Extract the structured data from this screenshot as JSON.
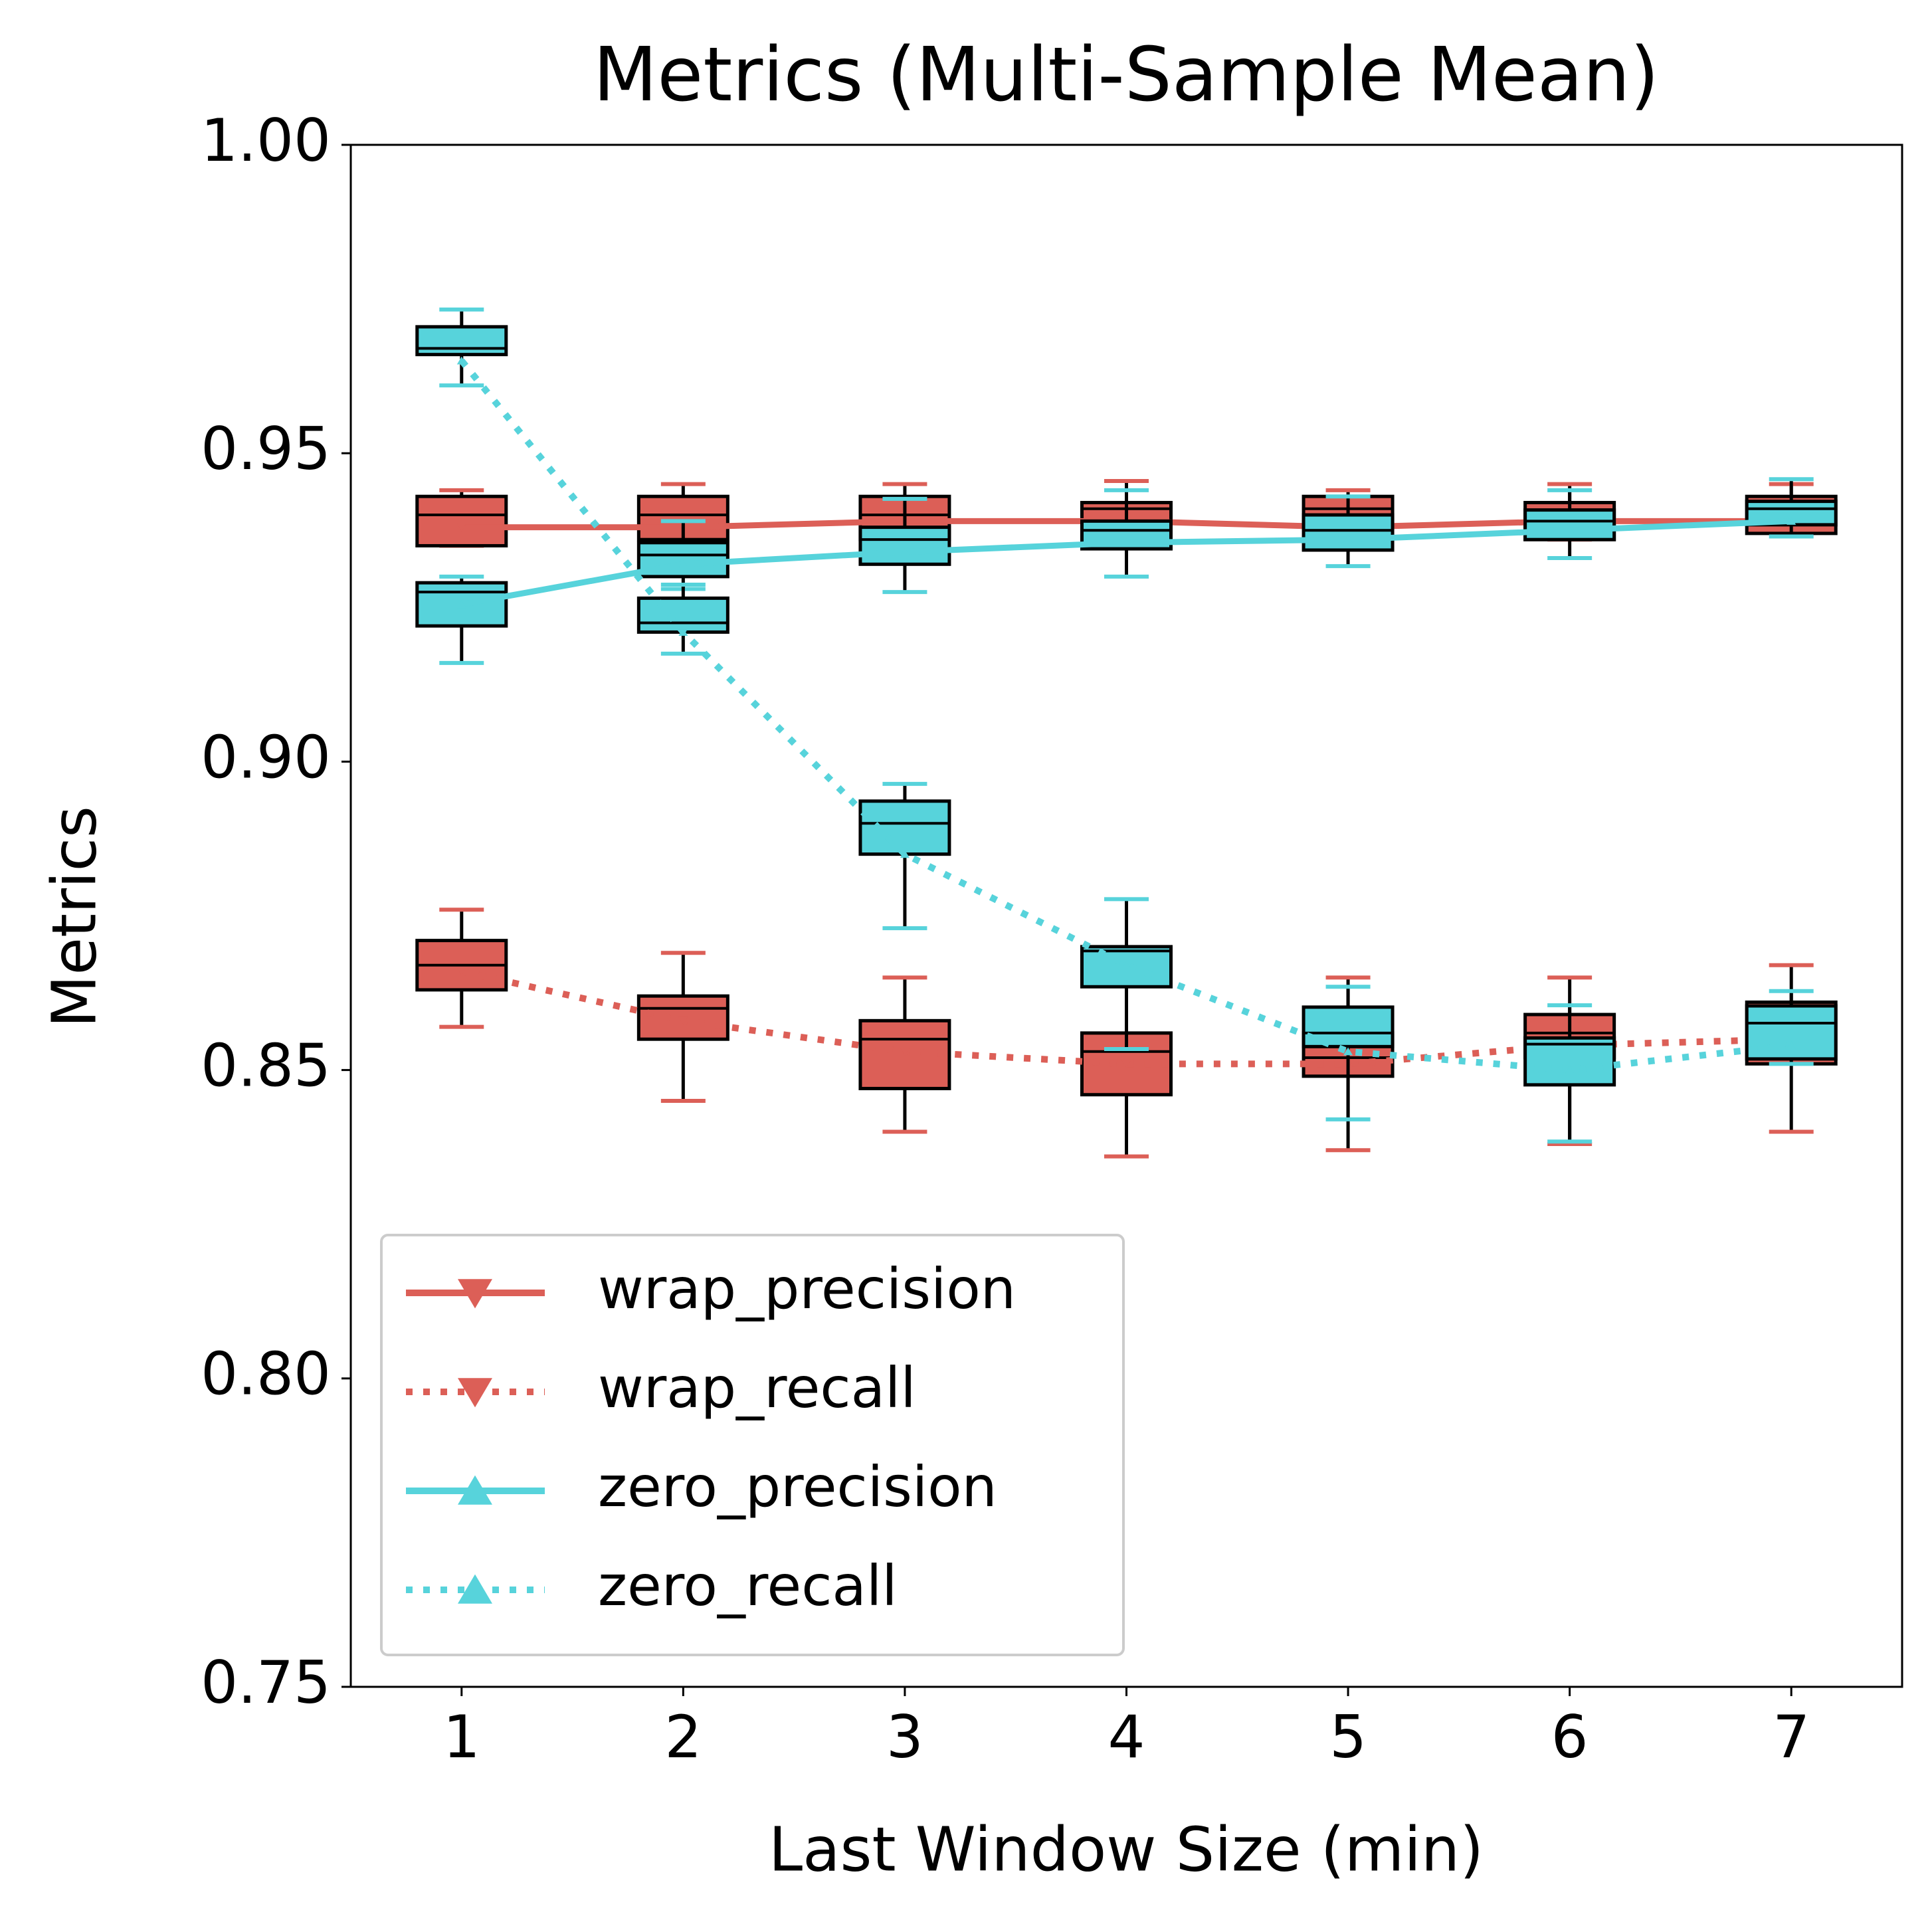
{
  "chart_data": {
    "type": "box-line",
    "title": "Metrics (Multi-Sample Mean)",
    "x_label": "Last Window Size (min)",
    "y_label": "Metrics",
    "x": [
      1,
      2,
      3,
      4,
      5,
      6,
      7
    ],
    "xlim": [
      0.5,
      7.5
    ],
    "xticks": [
      1,
      2,
      3,
      4,
      5,
      6,
      7
    ],
    "ylim": [
      0.75,
      1.0
    ],
    "yticks": [
      0.75,
      {
        "value": 0.8,
        "label": "0.80"
      },
      0.85,
      {
        "value": 0.9,
        "label": "0.90"
      },
      0.95,
      {
        "value": 1.0,
        "label": "1.00"
      }
    ],
    "legend_position": "lower left",
    "series": [
      {
        "name": "wrap_precision",
        "color": "#dc5f57",
        "linestyle": "solid",
        "marker": "triangle-down",
        "values": [
          0.938,
          0.938,
          0.939,
          0.939,
          0.938,
          0.939,
          0.939
        ],
        "box_low": [
          0.935,
          0.936,
          0.936,
          0.937,
          0.938,
          0.936,
          0.937
        ],
        "box_q1": [
          0.935,
          0.936,
          0.936,
          0.937,
          0.938,
          0.936,
          0.937
        ],
        "box_median": [
          0.94,
          0.94,
          0.94,
          0.941,
          0.941,
          0.94,
          0.94
        ],
        "box_q3": [
          0.943,
          0.943,
          0.943,
          0.942,
          0.943,
          0.942,
          0.943
        ],
        "box_high": [
          0.944,
          0.945,
          0.945,
          0.9455,
          0.944,
          0.945,
          0.945
        ]
      },
      {
        "name": "wrap_recall",
        "color": "#dc5f57",
        "linestyle": "dotted",
        "marker": "triangle-down",
        "values": [
          0.866,
          0.858,
          0.853,
          0.851,
          0.851,
          0.854,
          0.855
        ],
        "box_low": [
          0.857,
          0.845,
          0.84,
          0.836,
          0.837,
          0.838,
          0.84
        ],
        "box_q1": [
          0.863,
          0.855,
          0.847,
          0.846,
          0.849,
          0.852,
          0.851
        ],
        "box_median": [
          0.867,
          0.86,
          0.855,
          0.853,
          0.852,
          0.856,
          0.857
        ],
        "box_q3": [
          0.871,
          0.862,
          0.858,
          0.856,
          0.856,
          0.859,
          0.861
        ],
        "box_high": [
          0.876,
          0.869,
          0.865,
          0.865,
          0.865,
          0.865,
          0.867
        ]
      },
      {
        "name": "zero_precision",
        "color": "#57d3db",
        "linestyle": "solid",
        "marker": "triangle-up",
        "values": [
          0.9255,
          0.932,
          0.934,
          0.9355,
          0.936,
          0.9375,
          0.939
        ],
        "box_low": [
          0.916,
          0.928,
          0.9275,
          0.93,
          0.9317,
          0.933,
          0.9365
        ],
        "box_q1": [
          0.922,
          0.93,
          0.932,
          0.9345,
          0.9343,
          0.936,
          0.9384
        ],
        "box_median": [
          0.9275,
          0.9335,
          0.936,
          0.9375,
          0.9375,
          0.939,
          0.941
        ],
        "box_q3": [
          0.929,
          0.9355,
          0.938,
          0.939,
          0.94,
          0.9408,
          0.9422
        ],
        "box_high": [
          0.93,
          0.939,
          0.9426,
          0.944,
          0.943,
          0.944,
          0.9458
        ]
      },
      {
        "name": "zero_recall",
        "color": "#57d3db",
        "linestyle": "dotted",
        "marker": "triangle-up",
        "values": [
          0.965,
          0.921,
          0.885,
          0.867,
          0.853,
          0.85,
          0.854
        ],
        "box_low": [
          0.961,
          0.9175,
          0.873,
          0.8534,
          0.842,
          0.8384,
          0.851
        ],
        "box_q1": [
          0.966,
          0.921,
          0.885,
          0.8635,
          0.8538,
          0.8476,
          0.8518
        ],
        "box_median": [
          0.967,
          0.9225,
          0.89,
          0.8693,
          0.856,
          0.8542,
          0.8576
        ],
        "box_q3": [
          0.9705,
          0.9265,
          0.8936,
          0.87,
          0.8602,
          0.8552,
          0.8604
        ],
        "box_high": [
          0.9733,
          0.9287,
          0.8964,
          0.8777,
          0.8635,
          0.8605,
          0.8628
        ]
      }
    ]
  }
}
